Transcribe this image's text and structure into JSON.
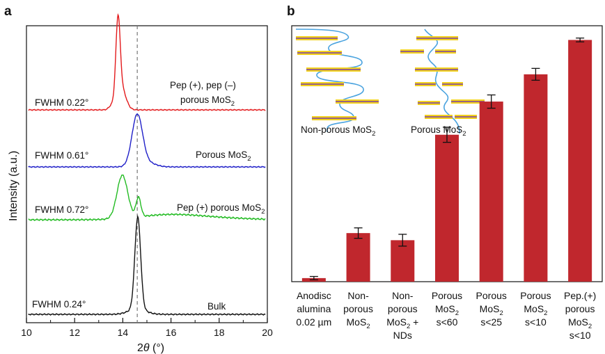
{
  "chart_data": [
    {
      "panel": "a",
      "type": "line",
      "xlabel": "2θ (°)",
      "ylabel": "Intensity (a.u.)",
      "xlim": [
        10,
        20
      ],
      "xticks": [
        10,
        12,
        14,
        16,
        18,
        20
      ],
      "reference_line_x": 14.6,
      "series": [
        {
          "label": "Pep (+), pep (–) porous MoS₂",
          "fwhm": "FWHM 0.22°",
          "color": "#e31a1c",
          "peak_x": 13.8
        },
        {
          "label": "Porous MoS₂",
          "fwhm": "FWHM 0.61°",
          "color": "#1f1fc8",
          "peak_x": 14.6
        },
        {
          "label": "Pep (+) porous MoS₂",
          "fwhm": "FWHM 0.72°",
          "color": "#22bb22",
          "peak_x": 14.0
        },
        {
          "label": "Bulk",
          "fwhm": "FWHM 0.24°",
          "color": "#111111",
          "peak_x": 14.6
        }
      ]
    },
    {
      "panel": "b",
      "type": "bar",
      "bar_color": "#c0272d",
      "categories": [
        "Anodisc alumina 0.02 µm",
        "Non-porous MoS₂",
        "Non-porous MoS₂ + NDs",
        "Porous MoS₂ s<60",
        "Porous MoS₂ s<25",
        "Porous MoS₂ s<10",
        "Pep.(+) porous MoS₂ s<10"
      ],
      "values": [
        1.5,
        20.5,
        17.5,
        62,
        76,
        87.5,
        102
      ],
      "errors": [
        0.7,
        2.2,
        2.5,
        3.2,
        2.8,
        2.5,
        0.8
      ],
      "ylim": [
        0,
        108
      ],
      "insets": [
        "Non-porous MoS₂",
        "Porous MoS₂"
      ]
    }
  ],
  "labels": {
    "panel_a": "a",
    "panel_b": "b",
    "a_fwhm": [
      "FWHM 0.22°",
      "FWHM 0.61°",
      "FWHM 0.72°",
      "FWHM 0.24°"
    ],
    "a_series": [
      "Pep (+), pep (–)",
      "porous MoS",
      "Porous MoS",
      "Pep (+) porous MoS",
      "Bulk"
    ],
    "sub2": "2",
    "a_xlabel_theta": "θ",
    "a_xlabel_rest": " (°)",
    "a_xlabel_two": "2",
    "a_ylabel": "Intensity (a.u.)",
    "b_inset_left": "Non-porous MoS",
    "b_inset_right": "Porous MoS",
    "b_cat_lines": [
      [
        "Anodisc",
        "alumina",
        "0.02 µm"
      ],
      [
        "Non-",
        "porous",
        "MoS"
      ],
      [
        "Non-",
        "porous",
        "MoS",
        "NDs"
      ],
      [
        "Porous",
        "MoS",
        "s<60"
      ],
      [
        "Porous",
        "MoS",
        "s<25"
      ],
      [
        "Porous",
        "MoS",
        "s<10"
      ],
      [
        "Pep.(+)",
        "porous",
        "MoS",
        "s<10"
      ]
    ]
  }
}
